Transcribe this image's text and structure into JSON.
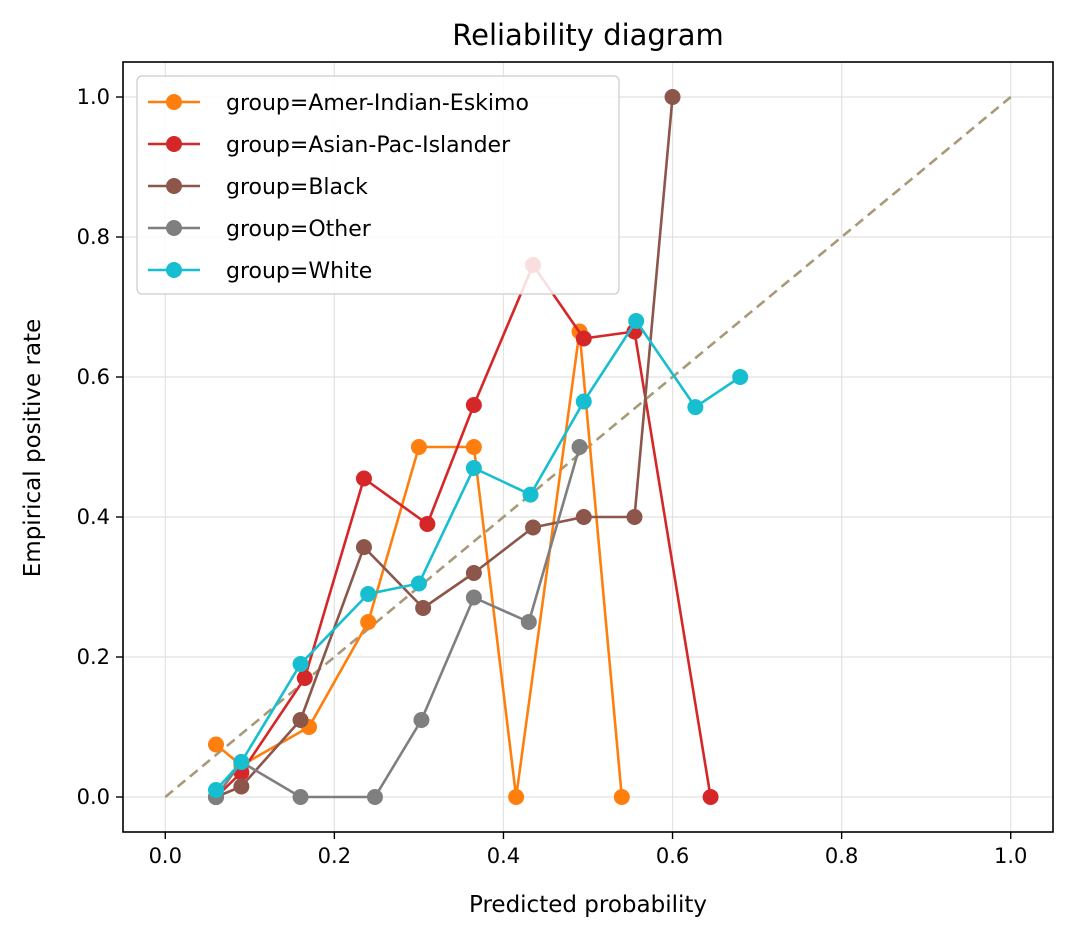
{
  "chart_data": {
    "type": "line",
    "title": "Reliability diagram",
    "xlabel": "Predicted probability",
    "ylabel": "Empirical positive rate",
    "xlim": [
      -0.05,
      1.05
    ],
    "ylim": [
      -0.05,
      1.05
    ],
    "xticks": [
      0.0,
      0.2,
      0.4,
      0.6,
      0.8,
      1.0
    ],
    "yticks": [
      0.0,
      0.2,
      0.4,
      0.6,
      0.8,
      1.0
    ],
    "xtick_labels": [
      "0.0",
      "0.2",
      "0.4",
      "0.6",
      "0.8",
      "1.0"
    ],
    "ytick_labels": [
      "0.0",
      "0.2",
      "0.4",
      "0.6",
      "0.8",
      "1.0"
    ],
    "grid": true,
    "legend_position": "top-left",
    "reference_line": {
      "x": [
        0,
        1
      ],
      "y": [
        0,
        1
      ],
      "color": "#a89a78",
      "style": "dashed"
    },
    "series": [
      {
        "name": "group=Amer-Indian-Eskimo",
        "color": "#ff7f0e",
        "x": [
          0.06,
          0.09,
          0.17,
          0.24,
          0.3,
          0.365,
          0.415,
          0.49,
          0.54
        ],
        "y": [
          0.075,
          0.045,
          0.1,
          0.25,
          0.5,
          0.5,
          0.0,
          0.665,
          0.0
        ]
      },
      {
        "name": "group=Asian-Pac-Islander",
        "color": "#d62728",
        "x": [
          0.06,
          0.09,
          0.165,
          0.235,
          0.31,
          0.365,
          0.435,
          0.495,
          0.555,
          0.645
        ],
        "y": [
          0.0,
          0.035,
          0.17,
          0.455,
          0.39,
          0.56,
          0.76,
          0.655,
          0.665,
          0.0
        ]
      },
      {
        "name": "group=Black",
        "color": "#8c564b",
        "x": [
          0.06,
          0.09,
          0.16,
          0.235,
          0.305,
          0.365,
          0.435,
          0.495,
          0.555,
          0.6
        ],
        "y": [
          0.0,
          0.015,
          0.11,
          0.357,
          0.27,
          0.32,
          0.385,
          0.4,
          0.4,
          1.0
        ]
      },
      {
        "name": "group=Other",
        "color": "#7f7f7f",
        "x": [
          0.06,
          0.09,
          0.16,
          0.248,
          0.303,
          0.365,
          0.43,
          0.49
        ],
        "y": [
          0.0,
          0.05,
          0.0,
          0.0,
          0.11,
          0.285,
          0.25,
          0.5
        ]
      },
      {
        "name": "group=White",
        "color": "#17becf",
        "x": [
          0.06,
          0.09,
          0.16,
          0.24,
          0.3,
          0.365,
          0.432,
          0.495,
          0.557,
          0.627,
          0.68
        ],
        "y": [
          0.01,
          0.05,
          0.19,
          0.29,
          0.305,
          0.47,
          0.432,
          0.565,
          0.68,
          0.557,
          0.6
        ]
      }
    ]
  }
}
